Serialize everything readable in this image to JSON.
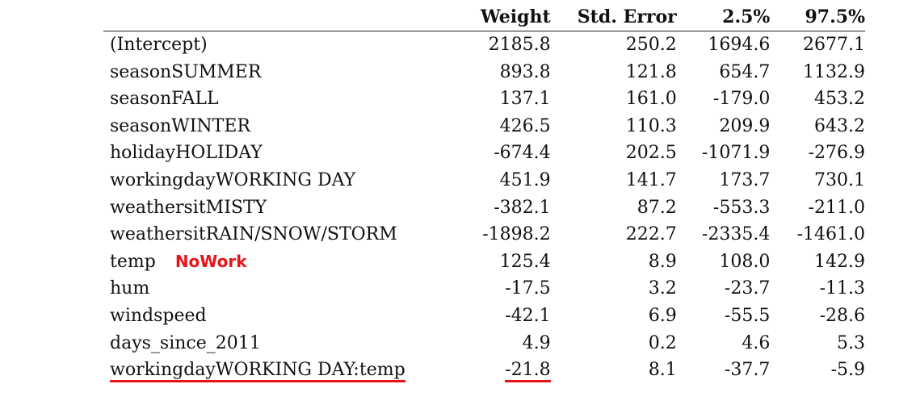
{
  "table": {
    "headers": [
      "",
      "Weight",
      "Std. Error",
      "2.5%",
      "97.5%"
    ],
    "rows": [
      {
        "term": "(Intercept)",
        "weight": "2185.8",
        "std_error": "250.2",
        "ci_low": "1694.6",
        "ci_high": "2677.1"
      },
      {
        "term": "seasonSUMMER",
        "weight": "893.8",
        "std_error": "121.8",
        "ci_low": "654.7",
        "ci_high": "1132.9"
      },
      {
        "term": "seasonFALL",
        "weight": "137.1",
        "std_error": "161.0",
        "ci_low": "-179.0",
        "ci_high": "453.2"
      },
      {
        "term": "seasonWINTER",
        "weight": "426.5",
        "std_error": "110.3",
        "ci_low": "209.9",
        "ci_high": "643.2"
      },
      {
        "term": "holidayHOLIDAY",
        "weight": "-674.4",
        "std_error": "202.5",
        "ci_low": "-1071.9",
        "ci_high": "-276.9"
      },
      {
        "term": "workingdayWORKING DAY",
        "weight": "451.9",
        "std_error": "141.7",
        "ci_low": "173.7",
        "ci_high": "730.1"
      },
      {
        "term": "weathersitMISTY",
        "weight": "-382.1",
        "std_error": "87.2",
        "ci_low": "-553.3",
        "ci_high": "-211.0"
      },
      {
        "term": "weathersitRAIN/SNOW/STORM",
        "weight": "-1898.2",
        "std_error": "222.7",
        "ci_low": "-2335.4",
        "ci_high": "-1461.0"
      },
      {
        "term": "temp",
        "weight": "125.4",
        "std_error": "8.9",
        "ci_low": "108.0",
        "ci_high": "142.9"
      },
      {
        "term": "hum",
        "weight": "-17.5",
        "std_error": "3.2",
        "ci_low": "-23.7",
        "ci_high": "-11.3"
      },
      {
        "term": "windspeed",
        "weight": "-42.1",
        "std_error": "6.9",
        "ci_low": "-55.5",
        "ci_high": "-28.6"
      },
      {
        "term": "days_since_2011",
        "weight": "4.9",
        "std_error": "0.2",
        "ci_low": "4.6",
        "ci_high": "5.3"
      },
      {
        "term": "workingdayWORKING DAY:temp",
        "weight": "-21.8",
        "std_error": "8.1",
        "ci_low": "-37.7",
        "ci_high": "-5.9"
      }
    ]
  },
  "annotation": {
    "text": "NoWork",
    "color": "#e8141b"
  },
  "highlight_color": "#e8141b"
}
